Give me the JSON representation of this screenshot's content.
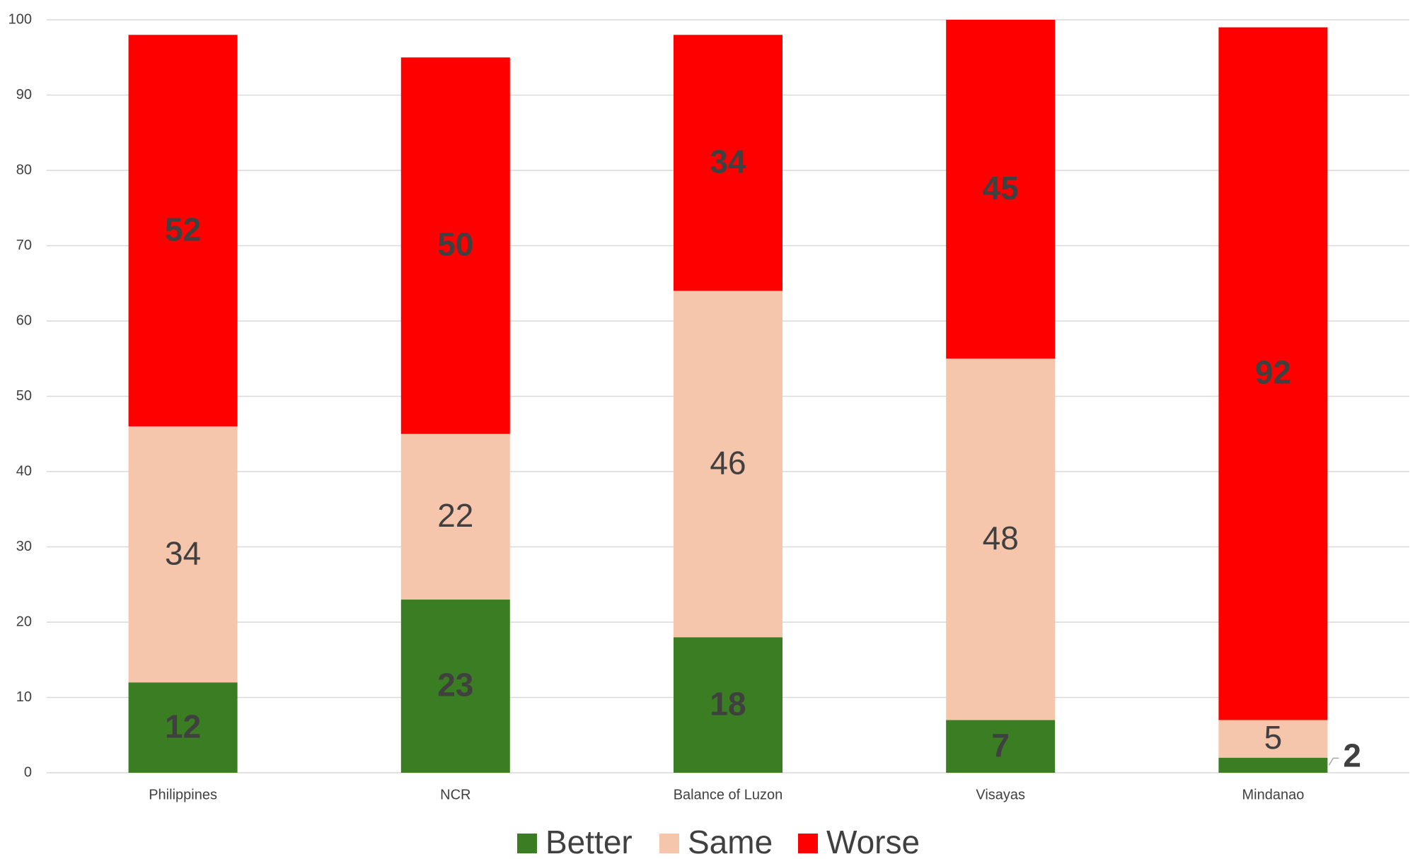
{
  "chart_data": {
    "type": "stacked_bar",
    "categories": [
      "Philippines",
      "NCR",
      "Balance of Luzon",
      "Visayas",
      "Mindanao"
    ],
    "series": [
      {
        "name": "Better",
        "color": "#3a7d22",
        "values": [
          12,
          23,
          18,
          7,
          2
        ]
      },
      {
        "name": "Same",
        "color": "#f5c6ab",
        "values": [
          34,
          22,
          46,
          48,
          5
        ]
      },
      {
        "name": "Worse",
        "color": "#ff0000",
        "values": [
          52,
          50,
          34,
          45,
          92
        ]
      }
    ],
    "ylim": [
      0,
      100
    ],
    "yticks": [
      0,
      10,
      20,
      30,
      40,
      50,
      60,
      70,
      80,
      90,
      100
    ],
    "grid": true,
    "legend": "bottom"
  }
}
